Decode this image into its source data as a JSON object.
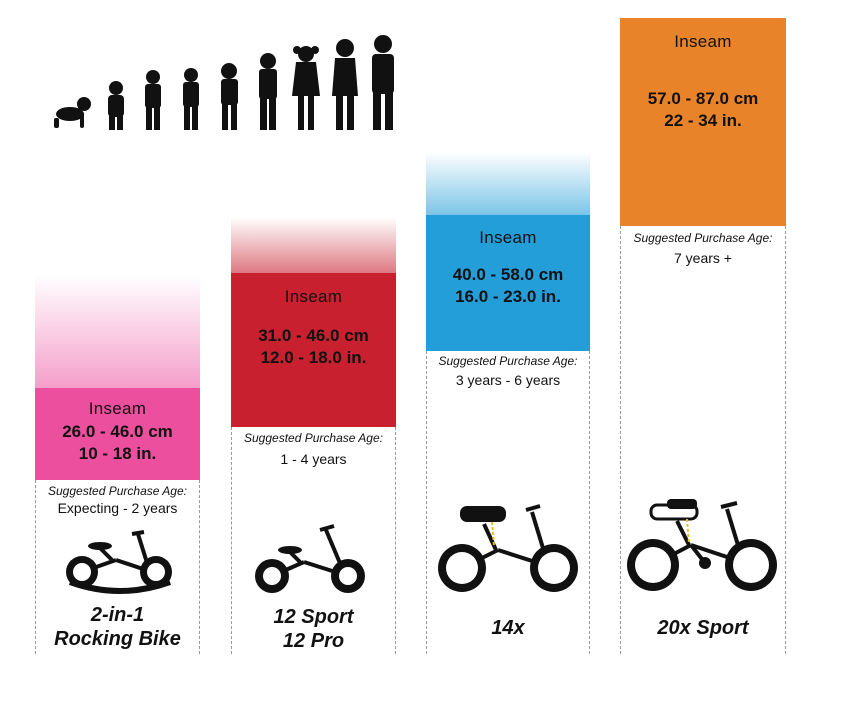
{
  "columns": [
    {
      "inseam_label": "Inseam",
      "cm": "26.0 - 46.0 cm",
      "inches": "10 - 18 in.",
      "age_label": "Suggested Purchase Age:",
      "age_value": "Expecting - 2 years",
      "model_line1": "2-in-1",
      "model_line2": "Rocking Bike",
      "color": "#ec4f9e"
    },
    {
      "inseam_label": "Inseam",
      "cm": "31.0 - 46.0 cm",
      "inches": "12.0 - 18.0 in.",
      "age_label": "Suggested Purchase Age:",
      "age_value": "1 - 4 years",
      "model_line1": "12 Sport",
      "model_line2": "12 Pro",
      "color": "#c8202f"
    },
    {
      "inseam_label": "Inseam",
      "cm": "40.0 - 58.0 cm",
      "inches": "16.0 - 23.0 in.",
      "age_label": "Suggested Purchase Age:",
      "age_value": "3 years - 6 years",
      "model_line1": "14x",
      "model_line2": "",
      "color": "#239ed9"
    },
    {
      "inseam_label": "Inseam",
      "cm": "57.0 - 87.0 cm",
      "inches": "22 - 34 in.",
      "age_label": "Suggested Purchase Age:",
      "age_value": "7 years +",
      "model_line1": "20x Sport",
      "model_line2": "",
      "color": "#e8832a"
    }
  ],
  "icons": {
    "silhouettes": "child-growth-silhouettes",
    "bike1": "rocking-balance-bike-icon",
    "bike2": "balance-bike-icon",
    "bike3": "balance-bike-with-seat-icon",
    "bike4": "pedal-bike-icon"
  }
}
